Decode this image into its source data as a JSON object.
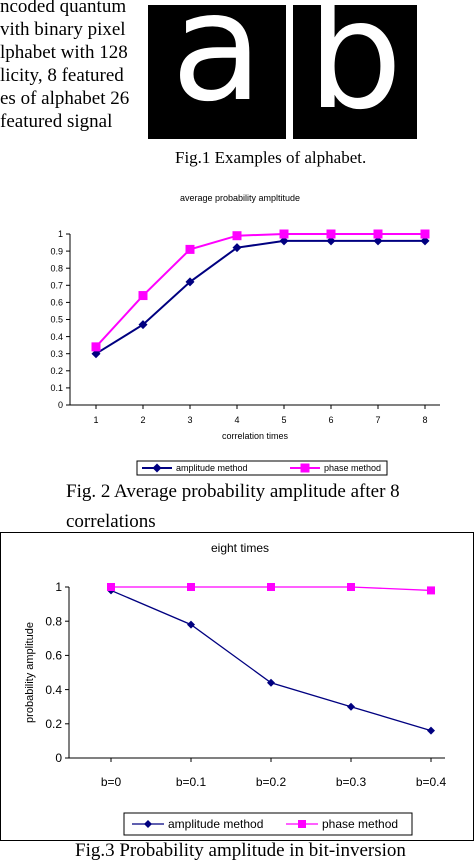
{
  "body_text": {
    "lines": [
      "ncoded quantum",
      "vith binary pixel",
      "lphabet with 128",
      "licity, 8 featured",
      "es of alphabet 26",
      " featured signal"
    ]
  },
  "figure1": {
    "letters": [
      "a",
      "b"
    ],
    "caption": "Fig.1 Examples of alphabet."
  },
  "figure2": {
    "caption_line1": "Fig. 2 Average probability amplitude after 8",
    "caption_line2": "correlations"
  },
  "figure3": {
    "caption": "Fig.3 Probability amplitude in bit-inversion"
  },
  "chart_data": [
    {
      "type": "line",
      "title": "average probability ampltitude",
      "xlabel": "correlation times",
      "ylabel": "",
      "categories": [
        "1",
        "2",
        "3",
        "4",
        "5",
        "6",
        "7",
        "8"
      ],
      "yticks": [
        "0",
        "0.1",
        "0.2",
        "0.3",
        "0.4",
        "0.5",
        "0.6",
        "0.7",
        "0.8",
        "0.9",
        "1"
      ],
      "ylim": [
        0,
        1
      ],
      "grid": false,
      "legend_position": "bottom",
      "series": [
        {
          "name": "amplitude method",
          "values": [
            0.3,
            0.47,
            0.72,
            0.92,
            0.96,
            0.96,
            0.96,
            0.96
          ],
          "color": "#000080",
          "marker": "diamond"
        },
        {
          "name": "phase method",
          "values": [
            0.34,
            0.64,
            0.91,
            0.99,
            1.0,
            1.0,
            1.0,
            1.0
          ],
          "color": "#ff00ff",
          "marker": "square"
        }
      ]
    },
    {
      "type": "line",
      "title": "eight times",
      "xlabel": "",
      "ylabel": "probability amplitude",
      "categories": [
        "b=0",
        "b=0.1",
        "b=0.2",
        "b=0.3",
        "b=0.4"
      ],
      "yticks": [
        "0",
        "0.2",
        "0.4",
        "0.6",
        "0.8",
        "1"
      ],
      "ylim": [
        0,
        1
      ],
      "grid": false,
      "legend_position": "bottom",
      "series": [
        {
          "name": "amplitude method",
          "values": [
            0.98,
            0.78,
            0.44,
            0.3,
            0.16
          ],
          "color": "#000080",
          "marker": "diamond"
        },
        {
          "name": "phase method",
          "values": [
            1.0,
            1.0,
            1.0,
            1.0,
            0.98
          ],
          "color": "#ff00ff",
          "marker": "square"
        }
      ]
    }
  ]
}
